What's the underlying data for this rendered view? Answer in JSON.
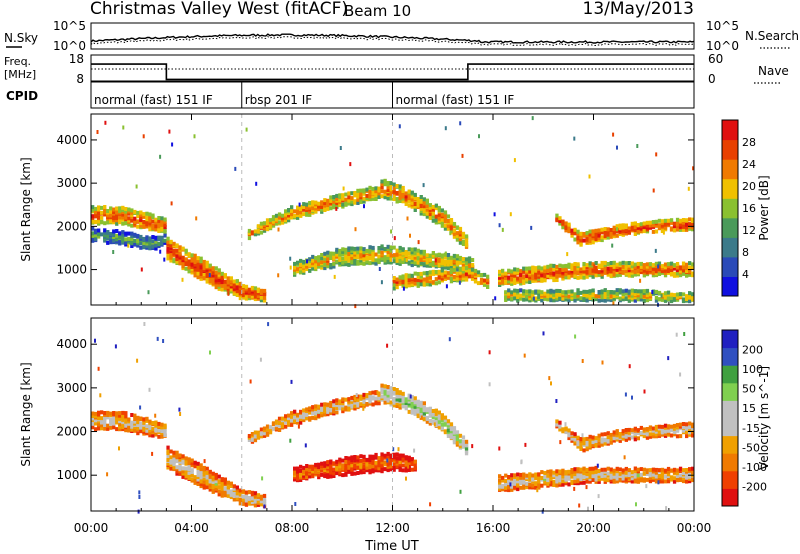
{
  "header": {
    "station": "Christmas Valley West (fitACF)",
    "beam": "Beam 10",
    "date": "13/May/2013"
  },
  "strip": {
    "nsky_label": "N.Sky",
    "nsearch_label": "N.Search",
    "freq_label_1": "Freq.",
    "freq_label_2": "[MHz]",
    "nave_label": "Nave",
    "cpid_label": "CPID",
    "nsky_ticks": [
      "10^5",
      "10^0"
    ],
    "nsearch_ticks": [
      "10^5",
      "10^0"
    ],
    "freq_ticks": [
      "18",
      "8"
    ],
    "nave_ticks": [
      "60",
      "0"
    ]
  },
  "cpid_segments": [
    {
      "label": "normal (fast) 151 IF",
      "start": 0,
      "end": 6
    },
    {
      "label": "rbsp 201 IF",
      "start": 6,
      "end": 12
    },
    {
      "label": "normal (fast) 151 IF",
      "start": 12,
      "end": 24
    }
  ],
  "colors": {
    "power_scale": [
      "#1010e0",
      "#2a4ab8",
      "#3b7a8a",
      "#4a9a5a",
      "#8ac030",
      "#f0c000",
      "#f07a00",
      "#e84000",
      "#e01010"
    ],
    "velocity_scale": [
      "#e01010",
      "#f04000",
      "#f07a00",
      "#f0a000",
      "#c0c0c0",
      "#c0c0c0",
      "#80d050",
      "#40a040",
      "#3050c0",
      "#2020c0"
    ]
  },
  "chart_data": [
    {
      "type": "heatmap",
      "panel": "power",
      "xlabel": "",
      "ylabel": "Slant Range [km]",
      "xlim": [
        0,
        24
      ],
      "ylim": [
        180,
        4600
      ],
      "yticks": [
        1000,
        2000,
        3000,
        4000
      ],
      "colorbar_label": "Power [dB]",
      "colorbar_ticks": [
        "4",
        "8",
        "12",
        "16",
        "20",
        "24",
        "28"
      ],
      "bands": [
        {
          "t": [
            0,
            1.2,
            2.3,
            3.0
          ],
          "center": [
            2250,
            2250,
            2100,
            2000
          ],
          "width": [
            400,
            400,
            400,
            300
          ],
          "level": 0.85
        },
        {
          "t": [
            0,
            1.0,
            2.5,
            3.0
          ],
          "center": [
            1800,
            1750,
            1600,
            1700
          ],
          "width": [
            300,
            300,
            300,
            200
          ],
          "level": 0.45
        },
        {
          "t": [
            3,
            4,
            5,
            6,
            7
          ],
          "center": [
            1500,
            1150,
            800,
            500,
            400
          ],
          "width": [
            500,
            500,
            450,
            350,
            250
          ],
          "level": 0.9
        },
        {
          "t": [
            6.2,
            8,
            10,
            11.5
          ],
          "center": [
            1800,
            2300,
            2600,
            2800
          ],
          "width": [
            200,
            300,
            300,
            300
          ],
          "level": 0.78
        },
        {
          "t": [
            11.5,
            12.5,
            14,
            15
          ],
          "center": [
            2900,
            2700,
            2200,
            1600
          ],
          "width": [
            400,
            400,
            400,
            300
          ],
          "level": 0.8
        },
        {
          "t": [
            8,
            10,
            12,
            14,
            15.2
          ],
          "center": [
            1000,
            1300,
            1350,
            1200,
            1100
          ],
          "width": [
            300,
            400,
            400,
            350,
            300
          ],
          "level": 0.7
        },
        {
          "t": [
            12,
            13.5,
            15,
            15.8
          ],
          "center": [
            700,
            800,
            900,
            700
          ],
          "width": [
            300,
            300,
            300,
            300
          ],
          "level": 0.8
        },
        {
          "t": [
            16.2,
            18,
            20,
            22,
            24
          ],
          "center": [
            800,
            900,
            1000,
            1000,
            1000
          ],
          "width": [
            350,
            350,
            350,
            300,
            300
          ],
          "level": 0.85
        },
        {
          "t": [
            18.5,
            19.5,
            21,
            22.5,
            24
          ],
          "center": [
            2200,
            1700,
            1900,
            2000,
            2050
          ],
          "width": [
            150,
            300,
            250,
            250,
            300
          ],
          "level": 0.9
        },
        {
          "t": [
            16.5,
            18,
            20,
            22,
            24
          ],
          "center": [
            400,
            400,
            400,
            400,
            350
          ],
          "width": [
            250,
            250,
            250,
            250,
            200
          ],
          "level": 0.65
        }
      ]
    },
    {
      "type": "heatmap",
      "panel": "velocity",
      "xlabel": "Time UT",
      "ylabel": "Slant Range [km]",
      "xlim": [
        0,
        24
      ],
      "ylim": [
        180,
        4600
      ],
      "yticks": [
        1000,
        2000,
        3000,
        4000
      ],
      "xticks": [
        "00:00",
        "04:00",
        "08:00",
        "12:00",
        "16:00",
        "20:00",
        "00:00"
      ],
      "colorbar_label": "Velocity [m s^-1]",
      "colorbar_ticks": [
        "-200",
        "-100",
        "-50",
        "-15",
        "15",
        "50",
        "100",
        "200"
      ],
      "bands": [
        {
          "t": [
            0,
            1.2,
            2.3,
            3.0
          ],
          "center": [
            2250,
            2250,
            2100,
            2000
          ],
          "width": [
            400,
            400,
            400,
            300
          ],
          "level": 0.5
        },
        {
          "t": [
            3,
            4,
            5,
            6,
            7
          ],
          "center": [
            1400,
            1100,
            800,
            500,
            400
          ],
          "width": [
            500,
            500,
            450,
            350,
            250
          ],
          "level": 0.5
        },
        {
          "t": [
            6.2,
            8,
            10,
            11.5
          ],
          "center": [
            1800,
            2300,
            2600,
            2800
          ],
          "width": [
            200,
            300,
            300,
            300
          ],
          "level": 0.5
        },
        {
          "t": [
            11.5,
            12.5,
            14,
            15
          ],
          "center": [
            2900,
            2700,
            2200,
            1600
          ],
          "width": [
            400,
            400,
            400,
            300
          ],
          "level": 0.68
        },
        {
          "t": [
            8,
            10,
            12,
            13
          ],
          "center": [
            1000,
            1200,
            1300,
            1250
          ],
          "width": [
            300,
            400,
            400,
            300
          ],
          "level": 0.3
        },
        {
          "t": [
            16.2,
            18,
            20,
            22,
            24
          ],
          "center": [
            800,
            900,
            1000,
            1000,
            1000
          ],
          "width": [
            350,
            350,
            350,
            300,
            300
          ],
          "level": 0.5
        },
        {
          "t": [
            18.5,
            19.5,
            21,
            22.5,
            24
          ],
          "center": [
            2200,
            1700,
            1900,
            2000,
            2050
          ],
          "width": [
            150,
            300,
            250,
            250,
            300
          ],
          "level": 0.5
        }
      ]
    }
  ]
}
